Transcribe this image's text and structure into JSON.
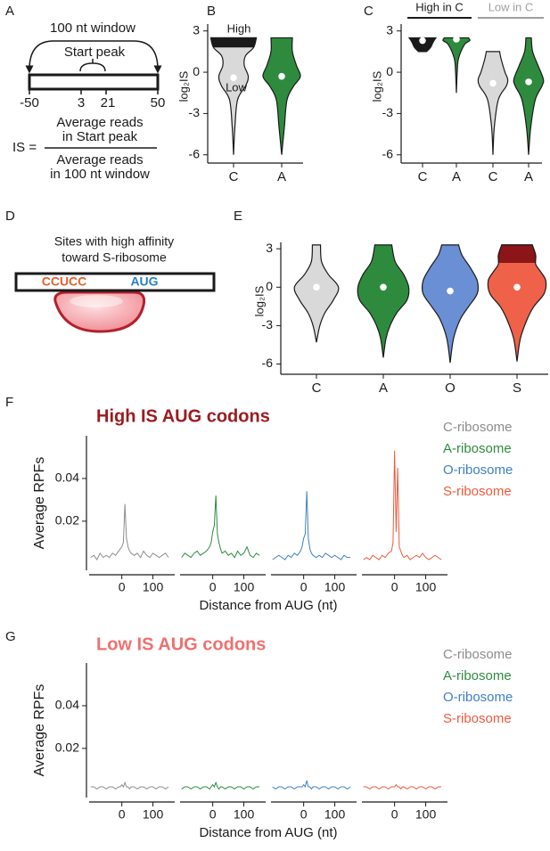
{
  "panel_labels": [
    "A",
    "B",
    "C",
    "D",
    "E",
    "F",
    "G"
  ],
  "diagram_a": {
    "window_label": "100 nt window",
    "peak_label": "Start peak",
    "positions": [
      -50,
      3,
      21,
      50
    ],
    "formula": {
      "lhs": "IS =",
      "numerator": [
        "Average reads",
        "in Start peak"
      ],
      "denominator": [
        "Average reads",
        "in 100 nt window"
      ]
    }
  },
  "diagram_d": {
    "caption": [
      "Sites with high affinity",
      "toward S-ribosome"
    ],
    "motif": "CCUCC",
    "codon": "AUG"
  },
  "chart_data": [
    {
      "type": "violin",
      "ylabel": "log₂IS",
      "categories": [
        "C",
        "A"
      ],
      "colors": [
        "#d9d9d9",
        "#2e8b3e"
      ],
      "ylim": [
        -6.6,
        3.5
      ],
      "yticks": [
        -6,
        -3,
        0,
        3
      ],
      "annotations": [
        "High",
        "Low"
      ],
      "violins": [
        {
          "y": [
            -6,
            -4,
            -2,
            -1,
            -0.3,
            0.5,
            1.2,
            1.8,
            2.5
          ],
          "w": [
            0,
            0.05,
            0.15,
            0.45,
            0.55,
            0.4,
            0.45,
            0.75,
            0.85
          ],
          "median": -0.4,
          "high_threshold": 1.8,
          "high_color": "#1a1a1a"
        },
        {
          "y": [
            -6,
            -4,
            -2,
            -1,
            -0.3,
            0.5,
            1.5,
            2.5
          ],
          "w": [
            0,
            0.1,
            0.2,
            0.45,
            0.7,
            0.55,
            0.4,
            0.4
          ],
          "median": -0.3
        }
      ]
    },
    {
      "type": "violin",
      "ylabel": "log₂IS",
      "categories": [
        "C",
        "A",
        "C",
        "A"
      ],
      "colors": [
        "#1a1a1a",
        "#2e8b3e",
        "#d9d9d9",
        "#2e8b3e"
      ],
      "groups": [
        {
          "label": "High in C",
          "color": "#1a1a1a"
        },
        {
          "label": "Low in C",
          "color": "#a0a0a0"
        }
      ],
      "ylim": [
        -6.6,
        3.5
      ],
      "yticks": [
        -6,
        -3,
        0,
        3
      ],
      "violins": [
        {
          "y": [
            1.5,
            1.8,
            2.2,
            2.5
          ],
          "w": [
            0.15,
            0.3,
            0.4,
            0.5
          ],
          "median": 2.3
        },
        {
          "y": [
            -1.5,
            0,
            1,
            2,
            2.3,
            2.5
          ],
          "w": [
            0,
            0.03,
            0.08,
            0.3,
            0.5,
            0.45
          ],
          "median": 2.4
        },
        {
          "y": [
            -6,
            -4,
            -2,
            -1,
            -0.5,
            0,
            1,
            1.5
          ],
          "w": [
            0,
            0.05,
            0.2,
            0.5,
            0.55,
            0.45,
            0.3,
            0.25
          ],
          "median": -0.8
        },
        {
          "y": [
            -6,
            -4,
            -2,
            -1,
            -0.5,
            0.5,
            1.5,
            2.5
          ],
          "w": [
            0,
            0.08,
            0.25,
            0.5,
            0.55,
            0.35,
            0.15,
            0.1
          ],
          "median": -0.7
        }
      ]
    },
    {
      "type": "violin",
      "ylabel": "log₂IS",
      "categories": [
        "C",
        "A",
        "O",
        "S"
      ],
      "colors": [
        "#d9d9d9",
        "#2e8b3e",
        "#6a8fd4",
        "#f0614a"
      ],
      "ylim": [
        -6.8,
        3.5
      ],
      "yticks": [
        -6,
        -3,
        0,
        3
      ],
      "violins": [
        {
          "y": [
            -4.3,
            -3,
            -2,
            -1,
            0,
            1,
            2,
            3.3
          ],
          "w": [
            0,
            0.1,
            0.25,
            0.5,
            0.65,
            0.35,
            0.15,
            0.12
          ],
          "median": 0
        },
        {
          "y": [
            -5.5,
            -4,
            -3,
            -2,
            -1,
            0,
            1,
            2,
            3.3
          ],
          "w": [
            0,
            0.08,
            0.2,
            0.4,
            0.7,
            0.75,
            0.6,
            0.35,
            0.25
          ],
          "median": 0
        },
        {
          "y": [
            -5.9,
            -4,
            -2.5,
            -1.5,
            -0.5,
            0.5,
            1.5,
            2.5,
            3.3
          ],
          "w": [
            0,
            0.1,
            0.3,
            0.55,
            0.8,
            0.8,
            0.6,
            0.35,
            0.25
          ],
          "median": -0.3
        },
        {
          "y": [
            -5.8,
            -4,
            -2.5,
            -1.5,
            -0.5,
            0.5,
            1.2,
            1.8,
            2.5,
            3.3
          ],
          "w": [
            0,
            0.1,
            0.3,
            0.5,
            0.8,
            0.85,
            0.7,
            0.55,
            0.55,
            0.45
          ],
          "median": 0,
          "high_threshold": 1.9,
          "high_color": "#8b1518"
        }
      ]
    },
    {
      "type": "line",
      "facets": true,
      "title": "High IS AUG codons",
      "title_color": "#9b1b1f",
      "xlabel": "Distance from AUG (nt)",
      "ylabel": "Average RPFs",
      "x": [
        -100,
        -90,
        -80,
        -70,
        -60,
        -50,
        -40,
        -30,
        -20,
        -10,
        -5,
        0,
        5,
        10,
        15,
        20,
        25,
        30,
        40,
        50,
        60,
        70,
        80,
        90,
        100,
        110,
        120,
        130,
        140,
        150
      ],
      "xlim": [
        -105,
        170
      ],
      "xticks": [
        0,
        100
      ],
      "ylim": [
        -0.003,
        0.06
      ],
      "yticks": [
        0.02,
        0.04
      ],
      "series": [
        {
          "name": "C-ribosome",
          "color": "#8c8c8c",
          "values": [
            0.003,
            0.004,
            0.002,
            0.005,
            0.003,
            0.004,
            0.003,
            0.005,
            0.004,
            0.006,
            0.007,
            0.008,
            0.01,
            0.028,
            0.012,
            0.008,
            0.006,
            0.005,
            0.004,
            0.005,
            0.003,
            0.006,
            0.004,
            0.003,
            0.005,
            0.004,
            0.003,
            0.004,
            0.005,
            0.003
          ]
        },
        {
          "name": "A-ribosome",
          "color": "#2e8b3e",
          "values": [
            0.003,
            0.005,
            0.004,
            0.003,
            0.005,
            0.006,
            0.004,
            0.005,
            0.006,
            0.008,
            0.01,
            0.015,
            0.018,
            0.032,
            0.014,
            0.01,
            0.007,
            0.005,
            0.006,
            0.004,
            0.005,
            0.003,
            0.006,
            0.004,
            0.005,
            0.008,
            0.004,
            0.003,
            0.005,
            0.004
          ]
        },
        {
          "name": "O-ribosome",
          "color": "#3f7fc4",
          "values": [
            0.002,
            0.003,
            0.004,
            0.003,
            0.002,
            0.004,
            0.003,
            0.005,
            0.004,
            0.006,
            0.008,
            0.012,
            0.014,
            0.034,
            0.012,
            0.007,
            0.005,
            0.004,
            0.003,
            0.004,
            0.003,
            0.005,
            0.004,
            0.003,
            0.004,
            0.003,
            0.002,
            0.004,
            0.003,
            0.003
          ]
        },
        {
          "name": "S-ribosome",
          "color": "#ee5a3e",
          "values": [
            0.002,
            0.003,
            0.002,
            0.004,
            0.003,
            0.002,
            0.004,
            0.003,
            0.005,
            0.006,
            0.01,
            0.053,
            0.015,
            0.045,
            0.008,
            0.006,
            0.004,
            0.003,
            0.004,
            0.002,
            0.003,
            0.004,
            0.003,
            0.005,
            0.003,
            0.002,
            0.003,
            0.004,
            0.003,
            0.002
          ]
        }
      ]
    },
    {
      "type": "line",
      "facets": true,
      "title": "Low IS AUG codons",
      "title_color": "#f07070",
      "xlabel": "Distance from AUG (nt)",
      "ylabel": "Average RPFs",
      "x": [
        -100,
        -90,
        -80,
        -70,
        -60,
        -50,
        -40,
        -30,
        -20,
        -10,
        -5,
        0,
        5,
        10,
        15,
        20,
        25,
        30,
        40,
        50,
        60,
        70,
        80,
        90,
        100,
        110,
        120,
        130,
        140,
        150
      ],
      "xlim": [
        -105,
        170
      ],
      "xticks": [
        0,
        100
      ],
      "ylim": [
        -0.003,
        0.06
      ],
      "yticks": [
        0.02,
        0.04
      ],
      "series": [
        {
          "name": "C-ribosome",
          "color": "#8c8c8c",
          "values": [
            0.002,
            0.002,
            0.001,
            0.002,
            0.002,
            0.001,
            0.002,
            0.002,
            0.001,
            0.002,
            0.002,
            0.003,
            0.002,
            0.004,
            0.002,
            0.002,
            0.001,
            0.002,
            0.002,
            0.001,
            0.002,
            0.002,
            0.001,
            0.002,
            0.002,
            0.001,
            0.002,
            0.002,
            0.001,
            0.002
          ]
        },
        {
          "name": "A-ribosome",
          "color": "#2e8b3e",
          "values": [
            0.001,
            0.002,
            0.002,
            0.001,
            0.002,
            0.002,
            0.001,
            0.002,
            0.002,
            0.001,
            0.002,
            0.003,
            0.002,
            0.004,
            0.002,
            0.001,
            0.002,
            0.002,
            0.001,
            0.002,
            0.002,
            0.001,
            0.002,
            0.002,
            0.001,
            0.002,
            0.002,
            0.001,
            0.002,
            0.002
          ]
        },
        {
          "name": "O-ribosome",
          "color": "#3f7fc4",
          "values": [
            0.002,
            0.001,
            0.002,
            0.002,
            0.001,
            0.002,
            0.002,
            0.001,
            0.002,
            0.002,
            0.002,
            0.003,
            0.002,
            0.005,
            0.002,
            0.002,
            0.001,
            0.002,
            0.002,
            0.001,
            0.002,
            0.002,
            0.001,
            0.002,
            0.002,
            0.001,
            0.002,
            0.002,
            0.001,
            0.002
          ]
        },
        {
          "name": "S-ribosome",
          "color": "#ee5a3e",
          "values": [
            0.002,
            0.002,
            0.001,
            0.002,
            0.002,
            0.001,
            0.002,
            0.002,
            0.001,
            0.002,
            0.002,
            0.002,
            0.003,
            0.002,
            0.002,
            0.001,
            0.002,
            0.002,
            0.001,
            0.002,
            0.002,
            0.001,
            0.002,
            0.002,
            0.001,
            0.002,
            0.002,
            0.001,
            0.002,
            0.002
          ]
        }
      ]
    }
  ]
}
